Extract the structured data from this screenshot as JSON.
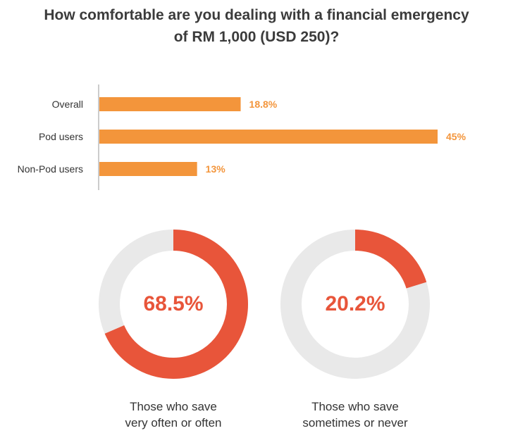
{
  "chart_data": [
    {
      "type": "bar",
      "orientation": "horizontal",
      "title": "How comfortable are you dealing with a financial emergency of RM 1,000 (USD 250)?",
      "title_lines": [
        "How comfortable are you dealing with a financial emergency",
        "of RM 1,000 (USD 250)?"
      ],
      "categories": [
        "Overall",
        "Pod users",
        "Non-Pod users"
      ],
      "values": [
        18.8,
        45,
        13
      ],
      "value_labels": [
        "18.8%",
        "45%",
        "13%"
      ],
      "xlim": [
        0,
        45
      ],
      "bar_color": "#f3953b",
      "label_color": "#f3953b"
    },
    {
      "type": "pie",
      "style": "donut",
      "value": 68.5,
      "value_label": "68.5%",
      "caption_lines": [
        "Those who save",
        "very often or often"
      ],
      "fill_color": "#e8553a",
      "track_color": "#e9e9e9"
    },
    {
      "type": "pie",
      "style": "donut",
      "value": 20.2,
      "value_label": "20.2%",
      "caption_lines": [
        "Those who save",
        "sometimes or never"
      ],
      "fill_color": "#e8553a",
      "track_color": "#e9e9e9"
    }
  ]
}
